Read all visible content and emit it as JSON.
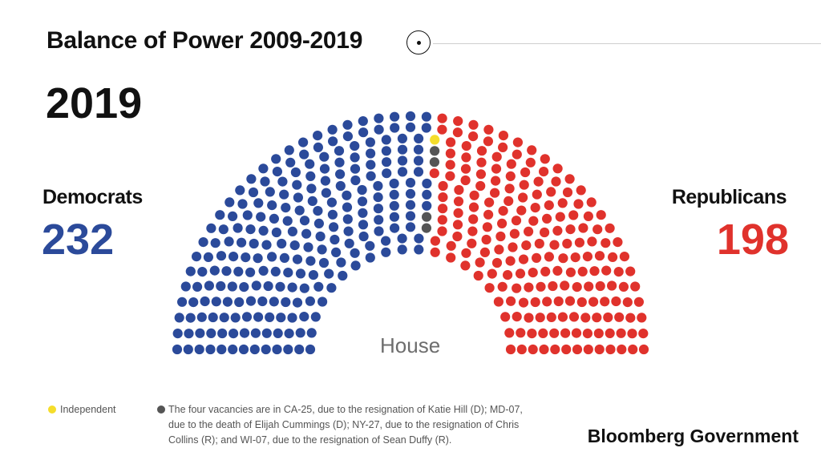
{
  "header": {
    "title": "Balance of Power 2009-2019",
    "year": "2019"
  },
  "colors": {
    "democrat": "#2b4a9a",
    "republican": "#e0322c",
    "independent": "#f5dd2b",
    "vacancy": "#555555"
  },
  "parties": {
    "democrats": {
      "name": "Democrats",
      "count": "232"
    },
    "republicans": {
      "name": "Republicans",
      "count": "198"
    }
  },
  "chart_data": {
    "type": "hemicycle",
    "chamber": "House",
    "total_seats": 435,
    "segments": [
      {
        "name": "Democrats",
        "seats": 232,
        "color": "#2b4a9a"
      },
      {
        "name": "Independent",
        "seats": 1,
        "color": "#f5dd2b"
      },
      {
        "name": "Vacancies",
        "seats": 4,
        "color": "#555555"
      },
      {
        "name": "Republicans",
        "seats": 198,
        "color": "#e0322c"
      }
    ]
  },
  "legend": {
    "independent": "Independent",
    "vacancy": "The four vacancies are in CA-25, due to the resignation of Katie Hill (D); MD-07, due to the death of Elijah Cummings (D); NY-27, due to the resignation of Chris Collins (R); and WI-07, due to the resignation of Sean Duffy (R)."
  },
  "brand": "Bloomberg Government"
}
